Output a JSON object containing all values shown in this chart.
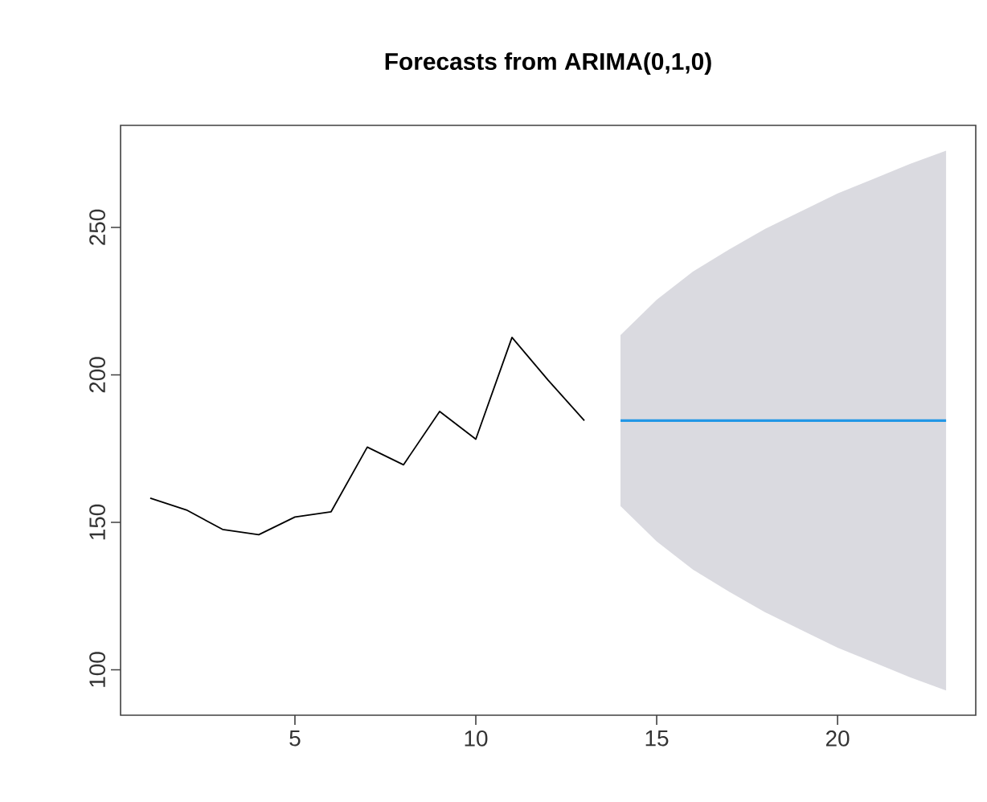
{
  "chart_data": {
    "type": "line",
    "title": "Forecasts from ARIMA(0,1,0)",
    "xlim": [
      0.18,
      23.82
    ],
    "ylim": [
      84.6,
      284.6
    ],
    "xticks": [
      5,
      10,
      15,
      20
    ],
    "yticks": [
      100,
      150,
      200,
      250
    ],
    "series": [
      {
        "x": [
          1,
          2,
          3,
          4,
          5,
          6,
          7,
          8,
          9,
          10,
          11,
          12,
          13
        ],
        "values": [
          158.2,
          154.2,
          147.6,
          145.8,
          151.8,
          153.6,
          175.5,
          169.5,
          187.6,
          178.2,
          212.7,
          198.2,
          184.5
        ],
        "color": "#000000"
      },
      {
        "x": [
          14,
          15,
          16,
          17,
          18,
          19,
          20,
          21,
          22,
          23
        ],
        "values": [
          184.5,
          184.5,
          184.5,
          184.5,
          184.5,
          184.5,
          184.5,
          184.5,
          184.5,
          184.5
        ],
        "color": "#2297e6",
        "lower": [
          155.5,
          143.5,
          134,
          126.5,
          119.5,
          113.5,
          107.5,
          102.5,
          97.5,
          93
        ],
        "upper": [
          213.5,
          225.5,
          235,
          242.5,
          249.5,
          255.5,
          261.5,
          266.5,
          271.5,
          276
        ]
      }
    ]
  }
}
